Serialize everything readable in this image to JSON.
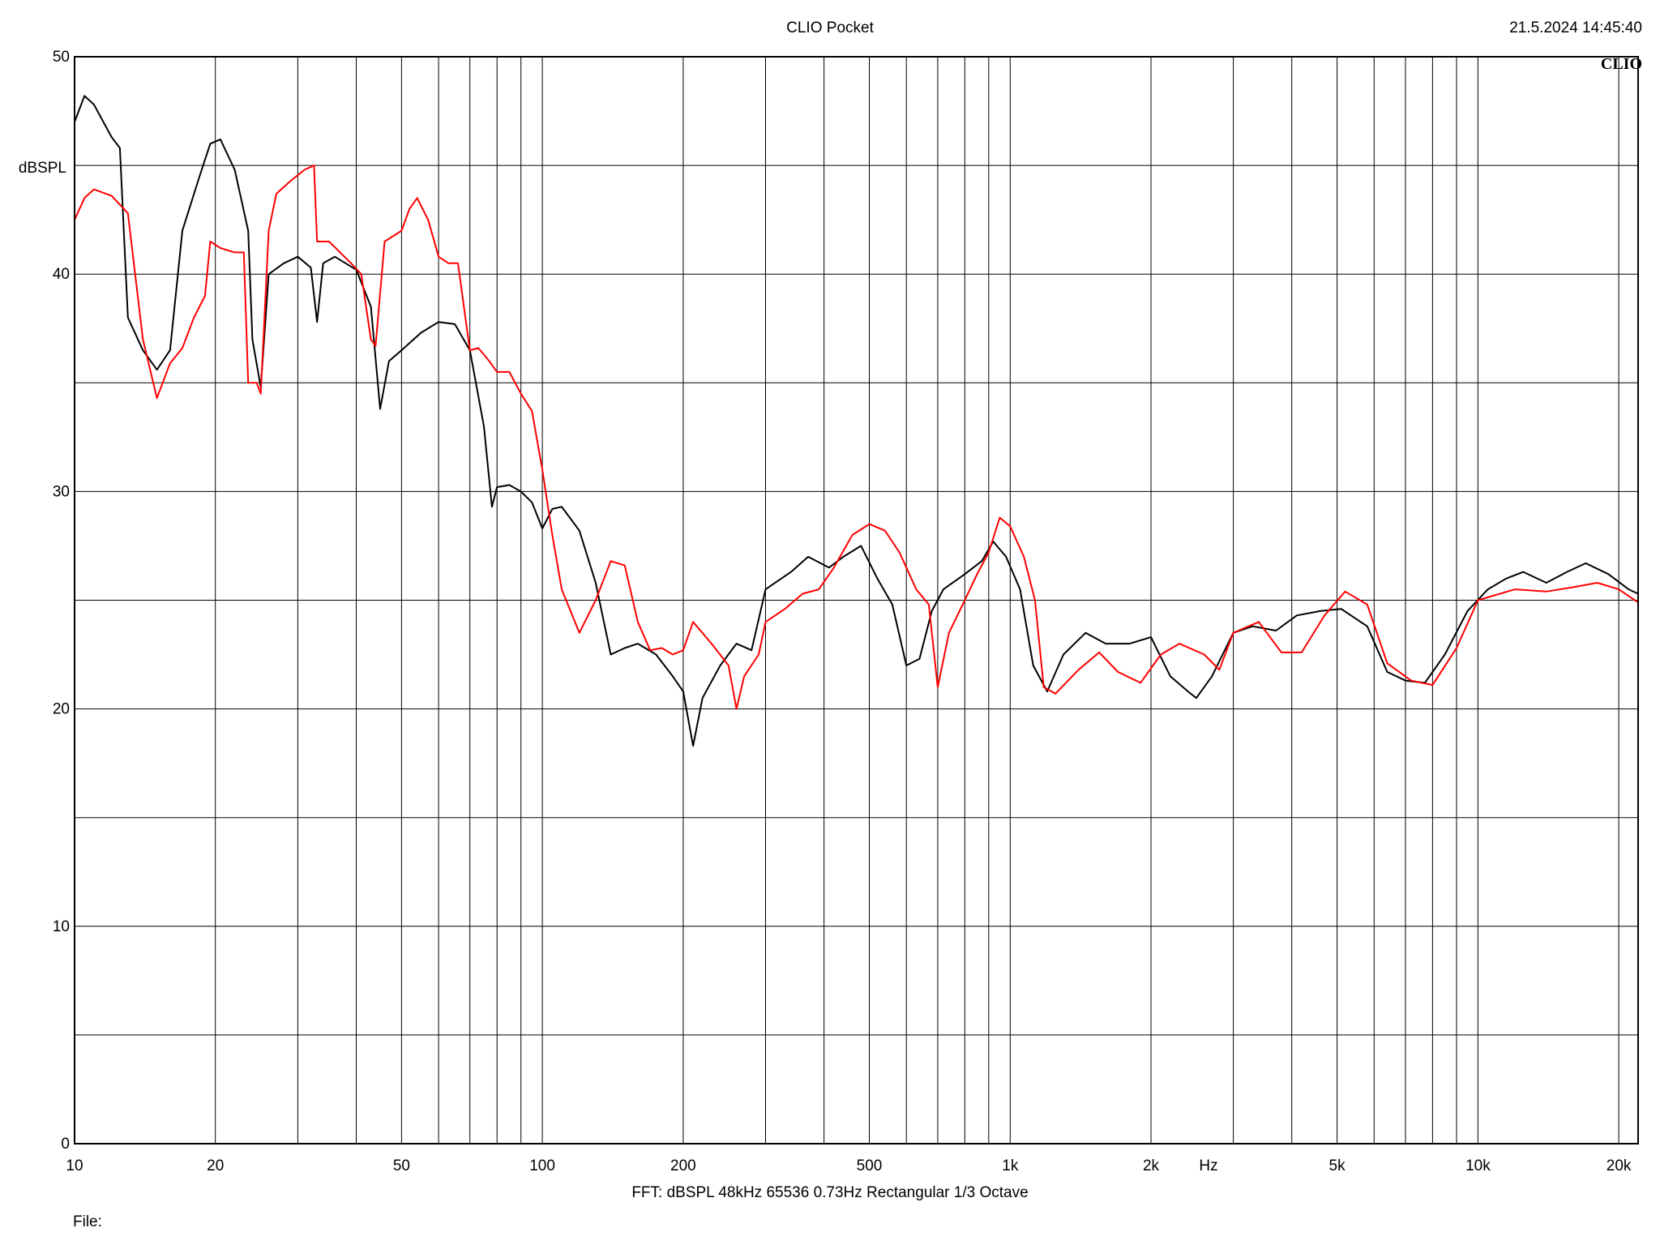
{
  "header": {
    "title": "CLIO Pocket",
    "timestamp": "21.5.2024 14:45:40",
    "brand": "CLIO"
  },
  "footer": {
    "info": "FFT:  dBSPL  48kHz   65536  0.73Hz  Rectangular  1/3 Octave",
    "file_label": "File:"
  },
  "chart_data": {
    "type": "line",
    "title": "CLIO Pocket",
    "xlabel": "Hz",
    "ylabel": "dBSPL",
    "x_scale": "log",
    "xlim": [
      10,
      22000
    ],
    "ylim": [
      0,
      50
    ],
    "grid": true,
    "x_tick_labels": [
      {
        "value": 10,
        "label": "10"
      },
      {
        "value": 20,
        "label": "20"
      },
      {
        "value": 50,
        "label": "50"
      },
      {
        "value": 100,
        "label": "100"
      },
      {
        "value": 200,
        "label": "200"
      },
      {
        "value": 500,
        "label": "500"
      },
      {
        "value": 1000,
        "label": "1k"
      },
      {
        "value": 2000,
        "label": "2k"
      },
      {
        "value": 5000,
        "label": "5k"
      },
      {
        "value": 10000,
        "label": "10k"
      },
      {
        "value": 20000,
        "label": "20k"
      }
    ],
    "y_tick_labels": [
      {
        "value": 0,
        "label": "0"
      },
      {
        "value": 10,
        "label": "10"
      },
      {
        "value": 20,
        "label": "20"
      },
      {
        "value": 30,
        "label": "30"
      },
      {
        "value": 40,
        "label": "40"
      },
      {
        "value": 50,
        "label": "50"
      }
    ],
    "series": [
      {
        "color": "#000000",
        "points": [
          [
            10,
            47
          ],
          [
            10.5,
            48.2
          ],
          [
            11,
            47.8
          ],
          [
            12,
            46.3
          ],
          [
            12.5,
            45.8
          ],
          [
            13,
            38
          ],
          [
            14,
            36.5
          ],
          [
            15,
            35.6
          ],
          [
            16,
            36.5
          ],
          [
            17,
            42
          ],
          [
            18.5,
            44.5
          ],
          [
            19.5,
            46
          ],
          [
            20.5,
            46.2
          ],
          [
            22,
            44.8
          ],
          [
            23.5,
            42
          ],
          [
            24,
            37
          ],
          [
            25,
            34.8
          ],
          [
            26,
            40
          ],
          [
            28,
            40.5
          ],
          [
            30,
            40.8
          ],
          [
            32,
            40.3
          ],
          [
            33,
            37.8
          ],
          [
            34,
            40.5
          ],
          [
            36,
            40.8
          ],
          [
            40,
            40.2
          ],
          [
            43,
            38.5
          ],
          [
            45,
            33.8
          ],
          [
            47,
            36
          ],
          [
            50,
            36.5
          ],
          [
            55,
            37.3
          ],
          [
            60,
            37.8
          ],
          [
            65,
            37.7
          ],
          [
            70,
            36.5
          ],
          [
            75,
            33
          ],
          [
            78,
            29.3
          ],
          [
            80,
            30.2
          ],
          [
            85,
            30.3
          ],
          [
            90,
            30
          ],
          [
            95,
            29.5
          ],
          [
            100,
            28.3
          ],
          [
            105,
            29.2
          ],
          [
            110,
            29.3
          ],
          [
            120,
            28.2
          ],
          [
            130,
            25.8
          ],
          [
            140,
            22.5
          ],
          [
            150,
            22.8
          ],
          [
            160,
            23
          ],
          [
            175,
            22.5
          ],
          [
            190,
            21.5
          ],
          [
            200,
            20.8
          ],
          [
            210,
            18.3
          ],
          [
            220,
            20.5
          ],
          [
            240,
            22
          ],
          [
            260,
            23
          ],
          [
            280,
            22.7
          ],
          [
            300,
            25.5
          ],
          [
            340,
            26.3
          ],
          [
            370,
            27
          ],
          [
            410,
            26.5
          ],
          [
            440,
            27
          ],
          [
            480,
            27.5
          ],
          [
            520,
            26
          ],
          [
            560,
            24.8
          ],
          [
            600,
            22
          ],
          [
            640,
            22.3
          ],
          [
            680,
            24.5
          ],
          [
            720,
            25.5
          ],
          [
            800,
            26.2
          ],
          [
            870,
            26.8
          ],
          [
            920,
            27.7
          ],
          [
            980,
            27
          ],
          [
            1050,
            25.5
          ],
          [
            1120,
            22
          ],
          [
            1200,
            20.8
          ],
          [
            1300,
            22.5
          ],
          [
            1450,
            23.5
          ],
          [
            1600,
            23
          ],
          [
            1800,
            23
          ],
          [
            2000,
            23.3
          ],
          [
            2200,
            21.5
          ],
          [
            2400,
            20.8
          ],
          [
            2500,
            20.5
          ],
          [
            2700,
            21.5
          ],
          [
            3000,
            23.5
          ],
          [
            3300,
            23.8
          ],
          [
            3700,
            23.6
          ],
          [
            4100,
            24.3
          ],
          [
            4600,
            24.5
          ],
          [
            5100,
            24.6
          ],
          [
            5800,
            23.8
          ],
          [
            6400,
            21.7
          ],
          [
            7000,
            21.3
          ],
          [
            7700,
            21.2
          ],
          [
            8500,
            22.5
          ],
          [
            9500,
            24.5
          ],
          [
            10500,
            25.5
          ],
          [
            11500,
            26
          ],
          [
            12500,
            26.3
          ],
          [
            14000,
            25.8
          ],
          [
            15500,
            26.3
          ],
          [
            17000,
            26.7
          ],
          [
            19000,
            26.2
          ],
          [
            21000,
            25.5
          ],
          [
            22000,
            25.3
          ]
        ]
      },
      {
        "color": "#ff0000",
        "points": [
          [
            10,
            42.5
          ],
          [
            10.5,
            43.5
          ],
          [
            11,
            43.9
          ],
          [
            12,
            43.6
          ],
          [
            13,
            42.8
          ],
          [
            14,
            37
          ],
          [
            15,
            34.3
          ],
          [
            16,
            35.9
          ],
          [
            17,
            36.6
          ],
          [
            18,
            38
          ],
          [
            19,
            39
          ],
          [
            19.5,
            41.5
          ],
          [
            20.5,
            41.2
          ],
          [
            22,
            41
          ],
          [
            23,
            41
          ],
          [
            23.5,
            35
          ],
          [
            24.5,
            35
          ],
          [
            25,
            34.5
          ],
          [
            26,
            42
          ],
          [
            27,
            43.7
          ],
          [
            29,
            44.3
          ],
          [
            31,
            44.8
          ],
          [
            32.5,
            45
          ],
          [
            33,
            41.5
          ],
          [
            35,
            41.5
          ],
          [
            39,
            40.5
          ],
          [
            41,
            40
          ],
          [
            43,
            37
          ],
          [
            44,
            36.7
          ],
          [
            46,
            41.5
          ],
          [
            50,
            42
          ],
          [
            52,
            43
          ],
          [
            54,
            43.5
          ],
          [
            57,
            42.5
          ],
          [
            60,
            40.8
          ],
          [
            63,
            40.5
          ],
          [
            66,
            40.5
          ],
          [
            70,
            36.5
          ],
          [
            73,
            36.6
          ],
          [
            77,
            36
          ],
          [
            80,
            35.5
          ],
          [
            85,
            35.5
          ],
          [
            90,
            34.5
          ],
          [
            95,
            33.7
          ],
          [
            100,
            31
          ],
          [
            105,
            28
          ],
          [
            110,
            25.5
          ],
          [
            120,
            23.5
          ],
          [
            130,
            25
          ],
          [
            140,
            26.8
          ],
          [
            150,
            26.6
          ],
          [
            160,
            24
          ],
          [
            170,
            22.7
          ],
          [
            180,
            22.8
          ],
          [
            190,
            22.5
          ],
          [
            200,
            22.7
          ],
          [
            210,
            24
          ],
          [
            230,
            23
          ],
          [
            250,
            22
          ],
          [
            260,
            20
          ],
          [
            270,
            21.5
          ],
          [
            290,
            22.5
          ],
          [
            300,
            24
          ],
          [
            330,
            24.6
          ],
          [
            360,
            25.3
          ],
          [
            390,
            25.5
          ],
          [
            420,
            26.5
          ],
          [
            460,
            28
          ],
          [
            500,
            28.5
          ],
          [
            540,
            28.2
          ],
          [
            580,
            27.2
          ],
          [
            630,
            25.5
          ],
          [
            670,
            24.8
          ],
          [
            700,
            21
          ],
          [
            740,
            23.5
          ],
          [
            800,
            25
          ],
          [
            850,
            26.2
          ],
          [
            900,
            27.2
          ],
          [
            950,
            28.8
          ],
          [
            1000,
            28.4
          ],
          [
            1070,
            27
          ],
          [
            1130,
            25
          ],
          [
            1180,
            21
          ],
          [
            1250,
            20.7
          ],
          [
            1400,
            21.8
          ],
          [
            1550,
            22.6
          ],
          [
            1700,
            21.7
          ],
          [
            1900,
            21.2
          ],
          [
            2100,
            22.5
          ],
          [
            2300,
            23
          ],
          [
            2600,
            22.5
          ],
          [
            2800,
            21.8
          ],
          [
            3000,
            23.5
          ],
          [
            3400,
            24
          ],
          [
            3800,
            22.6
          ],
          [
            4200,
            22.6
          ],
          [
            4700,
            24.3
          ],
          [
            5200,
            25.4
          ],
          [
            5800,
            24.8
          ],
          [
            6400,
            22.1
          ],
          [
            7200,
            21.3
          ],
          [
            8000,
            21.1
          ],
          [
            9000,
            22.8
          ],
          [
            10000,
            25
          ],
          [
            12000,
            25.5
          ],
          [
            14000,
            25.4
          ],
          [
            16000,
            25.6
          ],
          [
            18000,
            25.8
          ],
          [
            20000,
            25.5
          ],
          [
            22000,
            24.9
          ]
        ]
      }
    ]
  }
}
